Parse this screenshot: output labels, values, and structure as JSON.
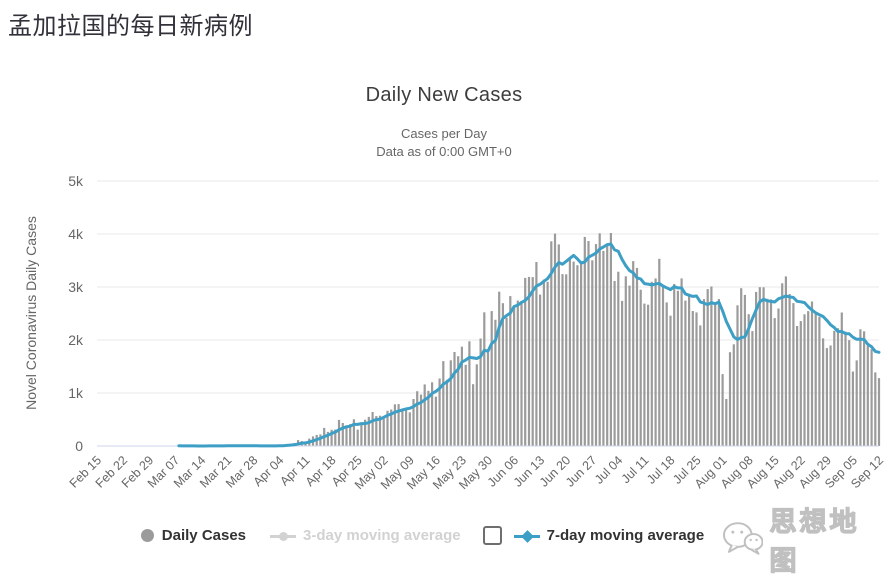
{
  "page_title": "孟加拉国的每日新病例",
  "chart": {
    "title": "Daily New Cases",
    "subtitle_line1": "Cases per Day",
    "subtitle_line2": "Data as of 0:00 GMT+0",
    "y_axis_title": "Novel Coronavirus Daily Cases"
  },
  "legend": {
    "items": [
      {
        "label": "Daily Cases",
        "marker": "circle",
        "color": "#9b9b9b",
        "active": true
      },
      {
        "label": "3-day moving average",
        "marker": "line-circle",
        "color": "#d2d2d2",
        "active": false
      },
      {
        "label": "7-day moving average",
        "marker": "line-diamond",
        "color": "#3d9fc6",
        "active": true
      }
    ],
    "three_day_checkbox_checked": false,
    "seven_day_checkbox_checked": true
  },
  "watermark": {
    "text": "思想地图",
    "icon": "chat-bubbles-icon"
  },
  "colors": {
    "bar": "#9b9b9b",
    "line": "#3d9fc6",
    "grid": "#e8e8e8",
    "axis_line": "#cdd6e8",
    "axis_text": "#666666",
    "checked_checkbox": "#2577f2"
  },
  "chart_data": {
    "type": "bar",
    "title": "Daily New Cases",
    "subtitle": "Cases per Day — Data as of 0:00 GMT+0",
    "ylabel": "Novel Coronavirus Daily Cases",
    "ylim": [
      0,
      5000
    ],
    "y_tick_labels": [
      "0",
      "1k",
      "2k",
      "3k",
      "4k",
      "5k"
    ],
    "start_date": "Feb 15",
    "end_date": "Sep 12",
    "x_tick_step_days": 7,
    "x_tick_labels": [
      "Feb 15",
      "Feb 22",
      "Feb 29",
      "Mar 07",
      "Mar 14",
      "Mar 21",
      "Mar 28",
      "Apr 04",
      "Apr 11",
      "Apr 18",
      "Apr 25",
      "May 02",
      "May 09",
      "May 16",
      "May 23",
      "May 30",
      "Jun 06",
      "Jun 13",
      "Jun 20",
      "Jun 27",
      "Jul 04",
      "Jul 11",
      "Jul 18",
      "Jul 25",
      "Aug 01",
      "Aug 08",
      "Aug 15",
      "Aug 22",
      "Aug 29",
      "Sep 05",
      "Sep 12"
    ],
    "legend_position": "bottom",
    "grid": true,
    "series": [
      {
        "name": "Daily Cases",
        "type": "bar",
        "color": "#9b9b9b",
        "visible": true,
        "values": [
          null,
          null,
          null,
          null,
          null,
          null,
          null,
          null,
          null,
          null,
          null,
          null,
          null,
          null,
          null,
          null,
          null,
          null,
          null,
          null,
          null,
          null,
          3,
          0,
          0,
          1,
          1,
          0,
          1,
          2,
          3,
          2,
          4,
          3,
          3,
          4,
          3,
          6,
          6,
          0,
          5,
          4,
          0,
          0,
          1,
          2,
          3,
          2,
          5,
          9,
          18,
          35,
          41,
          54,
          112,
          94,
          58,
          139,
          182,
          209,
          219,
          341,
          266,
          306,
          312,
          492,
          434,
          390,
          414,
          503,
          309,
          418,
          497,
          549,
          641,
          564,
          571,
          552,
          665,
          688,
          786,
          790,
          706,
          709,
          636,
          887,
          1034,
          969,
          1162,
          1041,
          1202,
          930,
          1273,
          1602,
          1251,
          1617,
          1773,
          1694,
          1873,
          1532,
          1975,
          1166,
          1541,
          2029,
          2523,
          1764,
          2545,
          2381,
          2911,
          2695,
          2423,
          2828,
          2635,
          2743,
          2735,
          3171,
          3190,
          3187,
          3471,
          2856,
          3141,
          3099,
          3862,
          4008,
          3803,
          3243,
          3240,
          3531,
          3480,
          3412,
          3462,
          3946,
          3868,
          3504,
          3809,
          4014,
          3682,
          3775,
          4019,
          3114,
          3288,
          2738,
          3201,
          3027,
          3489,
          3360,
          2949,
          2686,
          2666,
          3099,
          3163,
          3533,
          3034,
          2709,
          2459,
          3057,
          2928,
          3163,
          2744,
          2856,
          2548,
          2520,
          2275,
          2772,
          2960,
          3009,
          2695,
          2772,
          1356,
          886,
          1769,
          1918,
          2654,
          2977,
          2851,
          2487,
          2168,
          2907,
          2996,
          2995,
          2777,
          2766,
          2413,
          2595,
          3070,
          3200,
          2868,
          2697,
          2265,
          2356,
          2485,
          2545,
          2727,
          2519,
          2436,
          2032,
          1847,
          1897,
          2174,
          2222,
          2519,
          2158,
          1997,
          1406,
          1615,
          2202,
          2165,
          1892,
          1826,
          1388,
          1282
        ]
      },
      {
        "name": "3-day moving average",
        "type": "line",
        "color": "#d2d2d2",
        "visible": false
      },
      {
        "name": "7-day moving average",
        "type": "line",
        "color": "#3d9fc6",
        "visible": true,
        "derived_from": "7-day moving average of Daily Cases"
      }
    ]
  }
}
